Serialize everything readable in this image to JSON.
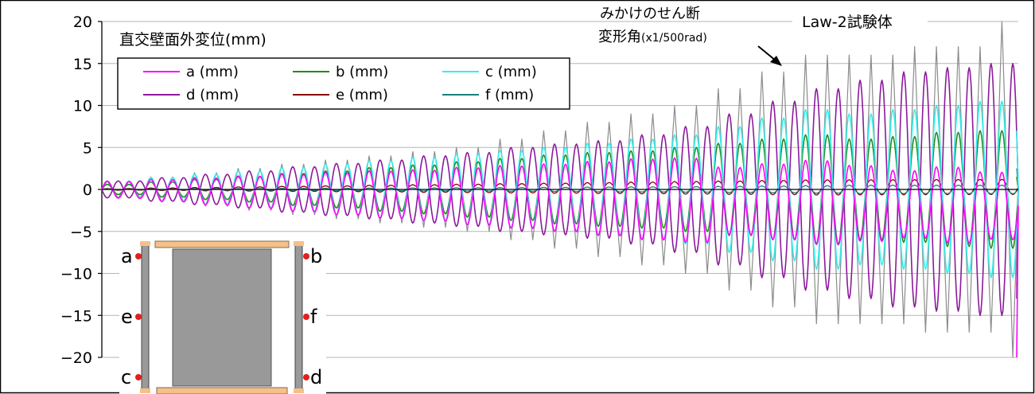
{
  "chart_data": {
    "type": "line",
    "title": "直交壁面外変位(mm)",
    "specimen_label": "Law-2試験体",
    "overlay_label_line1": "みかけのせん断",
    "overlay_label_line2_main": "変形角",
    "overlay_label_line2_unit": "(x1/500rad)",
    "ylim": [
      -20,
      20
    ],
    "yticks": [
      20,
      15,
      10,
      5,
      0,
      -5,
      -10,
      -15,
      -20
    ],
    "ytick_labels": [
      "20",
      "15",
      "10",
      "5",
      "0",
      "−5",
      "−10",
      "−15",
      "−20"
    ],
    "grid": "horizontal",
    "legend_placement": "top-left",
    "cycle_levels": [
      1,
      1,
      1.5,
      1.5,
      2,
      2,
      2.5,
      2.5,
      3,
      3,
      3.5,
      3.5,
      4,
      4,
      4.5,
      4.5,
      5,
      5,
      6,
      6,
      7,
      7,
      8,
      8,
      9,
      9,
      10,
      10,
      12,
      12,
      14,
      14,
      16,
      16,
      16,
      16,
      16,
      17,
      17,
      17,
      17,
      20
    ],
    "series": [
      {
        "name": "a (mm)",
        "key": "a",
        "color": "#ff00ff",
        "width": 1.6
      },
      {
        "name": "b (mm)",
        "key": "b",
        "color": "#228b22",
        "width": 1.6
      },
      {
        "name": "c (mm)",
        "key": "c",
        "color": "#33eeee",
        "width": 1.6
      },
      {
        "name": "d (mm)",
        "key": "d",
        "color": "#8b1a9b",
        "width": 1.6
      },
      {
        "name": "e (mm)",
        "key": "e",
        "color": "#8b0000",
        "width": 1.3
      },
      {
        "name": "f (mm)",
        "key": "f",
        "color": "#1a8080",
        "width": 1.3
      },
      {
        "name": "",
        "key": "gamma",
        "color": "#8c8c8c",
        "width": 1.2
      }
    ],
    "series_data": {
      "gamma": {
        "peaks": [
          1,
          1,
          1.5,
          1.5,
          2,
          2,
          2.5,
          2.5,
          3,
          3,
          3.5,
          3.5,
          4,
          4,
          4.5,
          4.5,
          5,
          5,
          6,
          6,
          7,
          7,
          8,
          8,
          9,
          9,
          10,
          10,
          12,
          12,
          14,
          14,
          16,
          16,
          16,
          16,
          16,
          17,
          17,
          17,
          17,
          20
        ]
      },
      "a": {
        "peaks": [
          1,
          1,
          1.3,
          1.3,
          1.6,
          1.6,
          1.9,
          1.9,
          2.2,
          2.2,
          2.5,
          2.5,
          2.8,
          2.8,
          3,
          3,
          3.4,
          3.4,
          3.7,
          3.7,
          4,
          4,
          4.4,
          4.4,
          4.8,
          4.8,
          5,
          5,
          4,
          4,
          4.5,
          4.5,
          5,
          5,
          4.5,
          4.5,
          4,
          4,
          4.5,
          4.5,
          4,
          4
        ],
        "trend_start": 0,
        "trend_end": -2,
        "tail": -20
      },
      "b": {
        "peaks": [
          0.6,
          0.6,
          0.9,
          0.9,
          1.2,
          1.2,
          1.5,
          1.5,
          1.9,
          1.9,
          2.2,
          2.2,
          2.6,
          2.6,
          2.9,
          2.9,
          3.3,
          3.3,
          3.7,
          3.7,
          4.1,
          4.1,
          4.4,
          4.4,
          4.6,
          4.6,
          5,
          5,
          5.5,
          5.5,
          6,
          6,
          6.5,
          6.5,
          6,
          6,
          6.3,
          6.3,
          6.8,
          6.8,
          7,
          7
        ],
        "trend_start": 0,
        "trend_end": 0,
        "tail": 1.5
      },
      "c": {
        "peaks": [
          1,
          1,
          1.4,
          1.4,
          1.8,
          1.8,
          2.2,
          2.2,
          2.6,
          2.6,
          3,
          3,
          3.4,
          3.4,
          3.8,
          3.8,
          4.2,
          4.2,
          4.6,
          4.6,
          5,
          5,
          5.5,
          5.5,
          6,
          6,
          6.5,
          6.5,
          7.5,
          7.5,
          8.5,
          8.5,
          9.5,
          9.5,
          9,
          9,
          9.5,
          9.5,
          10,
          10,
          10.5,
          10.5
        ],
        "trend_start": 0,
        "trend_end": 0,
        "tail": 7
      },
      "d": {
        "peaks": [
          -1,
          -1,
          -1.4,
          -1.4,
          -1.8,
          -1.8,
          -2.2,
          -2.2,
          -2.7,
          -2.7,
          -3.1,
          -3.1,
          -3.5,
          -3.5,
          -4,
          -4,
          -4.4,
          -4.4,
          -5,
          -5,
          -5.4,
          -5.4,
          -5.8,
          -5.8,
          -6.5,
          -6.5,
          -7.5,
          -7.5,
          -9,
          -9,
          -10.5,
          -10.5,
          -12,
          -12,
          -13,
          -13,
          -14,
          -14,
          -14.5,
          -14.5,
          -15,
          -15
        ],
        "trend_start": 0,
        "trend_end": 0,
        "tail": -13
      },
      "e": {
        "peaks": [
          0.1,
          0.1,
          0.15,
          0.15,
          0.2,
          0.2,
          0.25,
          0.25,
          0.3,
          0.3,
          0.35,
          0.35,
          0.4,
          0.4,
          0.45,
          0.45,
          0.5,
          0.5,
          0.55,
          0.55,
          0.6,
          0.6,
          0.65,
          0.65,
          0.7,
          0.7,
          0.75,
          0.75,
          0.8,
          0.8,
          0.85,
          0.85,
          0.9,
          0.9,
          0.9,
          0.9,
          0.9,
          0.9,
          0.9,
          0.9,
          0.9,
          0.9
        ],
        "trend_start": 0,
        "trend_end": 0.3,
        "tail": -11.5
      },
      "f": {
        "peaks": [
          0.05,
          0.05,
          0.07,
          0.07,
          0.09,
          0.09,
          0.1,
          0.1,
          0.12,
          0.12,
          0.14,
          0.14,
          0.16,
          0.16,
          0.18,
          0.18,
          0.2,
          0.2,
          0.22,
          0.22,
          0.25,
          0.25,
          0.28,
          0.28,
          0.3,
          0.3,
          0.33,
          0.33,
          0.36,
          0.36,
          0.4,
          0.4,
          0.45,
          0.45,
          0.5,
          0.5,
          0.5,
          0.5,
          0.5,
          0.5,
          0.5,
          0.5
        ],
        "trend_start": 0,
        "trend_end": 0,
        "tail": 2.5
      }
    }
  },
  "inset": {
    "sensor_a": "a",
    "sensor_b": "b",
    "sensor_c": "c",
    "sensor_d": "d",
    "sensor_e": "e",
    "sensor_f": "f"
  }
}
